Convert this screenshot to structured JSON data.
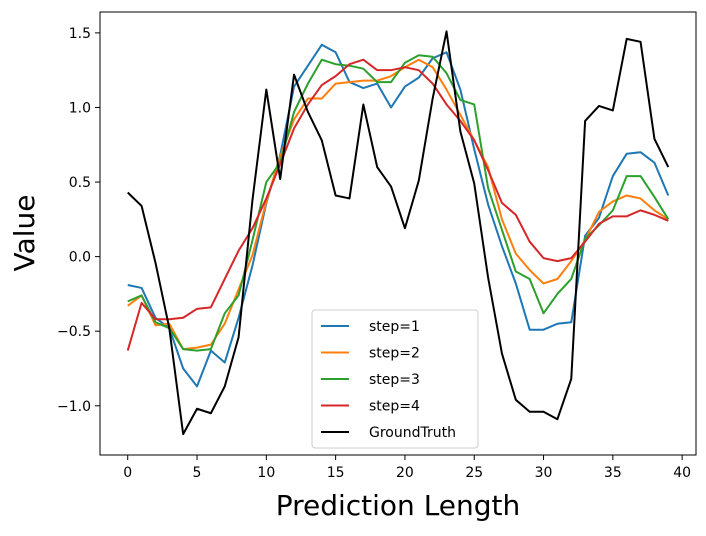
{
  "chart_data": {
    "type": "line",
    "title": "",
    "xlabel": "Prediction Length",
    "ylabel": "Value",
    "xlim": [
      -2,
      41
    ],
    "ylim": [
      -1.33,
      1.64
    ],
    "xticks": [
      0,
      5,
      10,
      15,
      20,
      25,
      30,
      35,
      40
    ],
    "yticks": [
      -1.0,
      -0.5,
      0.0,
      0.5,
      1.0,
      1.5
    ],
    "ytick_labels": [
      "−1.0",
      "−0.5",
      "0.0",
      "0.5",
      "1.0",
      "1.5"
    ],
    "grid": false,
    "legend_position": "lower-center",
    "x": [
      0,
      1,
      2,
      3,
      4,
      5,
      6,
      7,
      8,
      9,
      10,
      11,
      12,
      13,
      14,
      15,
      16,
      17,
      18,
      19,
      20,
      21,
      22,
      23,
      24,
      25,
      26,
      27,
      28,
      29,
      30,
      31,
      32,
      33,
      34,
      35,
      36,
      37,
      38,
      39
    ],
    "series": [
      {
        "name": "step=1",
        "color": "#1f77b4",
        "values": [
          -0.19,
          -0.21,
          -0.41,
          -0.48,
          -0.75,
          -0.87,
          -0.63,
          -0.71,
          -0.41,
          -0.06,
          0.36,
          0.68,
          1.14,
          1.28,
          1.42,
          1.37,
          1.17,
          1.13,
          1.16,
          1.0,
          1.14,
          1.2,
          1.33,
          1.37,
          1.12,
          0.72,
          0.35,
          0.07,
          -0.18,
          -0.49,
          -0.49,
          -0.45,
          -0.44,
          0.14,
          0.26,
          0.54,
          0.69,
          0.7,
          0.63,
          0.41
        ]
      },
      {
        "name": "step=2",
        "color": "#ff7f0e",
        "values": [
          -0.33,
          -0.26,
          -0.46,
          -0.45,
          -0.62,
          -0.61,
          -0.59,
          -0.45,
          -0.22,
          0.01,
          0.37,
          0.67,
          0.92,
          1.06,
          1.06,
          1.16,
          1.17,
          1.18,
          1.18,
          1.21,
          1.27,
          1.32,
          1.27,
          1.12,
          0.95,
          0.78,
          0.6,
          0.25,
          0.02,
          -0.09,
          -0.18,
          -0.15,
          -0.03,
          0.11,
          0.3,
          0.37,
          0.41,
          0.39,
          0.31,
          0.25
        ]
      },
      {
        "name": "step=3",
        "color": "#2ca02c",
        "values": [
          -0.3,
          -0.26,
          -0.44,
          -0.48,
          -0.62,
          -0.63,
          -0.62,
          -0.38,
          -0.26,
          0.11,
          0.5,
          0.63,
          0.97,
          1.16,
          1.32,
          1.29,
          1.28,
          1.26,
          1.17,
          1.17,
          1.3,
          1.35,
          1.34,
          1.23,
          1.05,
          1.02,
          0.46,
          0.18,
          -0.1,
          -0.15,
          -0.38,
          -0.25,
          -0.15,
          0.12,
          0.21,
          0.31,
          0.54,
          0.54,
          0.4,
          0.25
        ]
      },
      {
        "name": "step=4",
        "color": "#d62728",
        "values": [
          -0.63,
          -0.31,
          -0.42,
          -0.42,
          -0.41,
          -0.35,
          -0.34,
          -0.15,
          0.04,
          0.19,
          0.39,
          0.62,
          0.86,
          1.02,
          1.15,
          1.21,
          1.29,
          1.32,
          1.25,
          1.25,
          1.27,
          1.25,
          1.16,
          1.02,
          0.91,
          0.78,
          0.58,
          0.36,
          0.28,
          0.1,
          -0.01,
          -0.03,
          -0.01,
          0.1,
          0.22,
          0.27,
          0.27,
          0.31,
          0.28,
          0.24
        ]
      },
      {
        "name": "GroundTruth",
        "color": "#000000",
        "values": [
          0.43,
          0.34,
          -0.04,
          -0.48,
          -1.19,
          -1.02,
          -1.05,
          -0.87,
          -0.54,
          0.38,
          1.12,
          0.52,
          1.22,
          0.97,
          0.78,
          0.41,
          0.39,
          1.02,
          0.6,
          0.47,
          0.19,
          0.51,
          1.06,
          1.51,
          0.84,
          0.49,
          -0.14,
          -0.65,
          -0.96,
          -1.04,
          -1.04,
          -1.09,
          -0.82,
          0.91,
          1.01,
          0.98,
          1.46,
          1.44,
          0.79,
          0.6
        ]
      }
    ]
  }
}
